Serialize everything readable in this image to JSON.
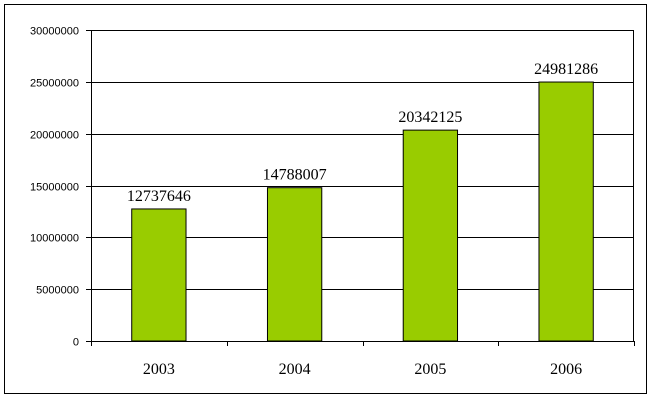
{
  "chart_data": {
    "type": "bar",
    "categories": [
      "2003",
      "2004",
      "2005",
      "2006"
    ],
    "values": [
      12737646,
      14788007,
      20342125,
      24981286
    ],
    "data_labels": [
      "12737646",
      "14788007",
      "20342125",
      "24981286"
    ],
    "ylim": [
      0,
      30000000
    ],
    "yticks": [
      0,
      5000000,
      10000000,
      15000000,
      20000000,
      25000000,
      30000000
    ],
    "ytick_labels": [
      "0",
      "5000000",
      "10000000",
      "15000000",
      "20000000",
      "25000000",
      "30000000"
    ],
    "grid": true,
    "legend": "none",
    "bar_color": "#99cc00",
    "title": "",
    "xlabel": "",
    "ylabel": ""
  }
}
